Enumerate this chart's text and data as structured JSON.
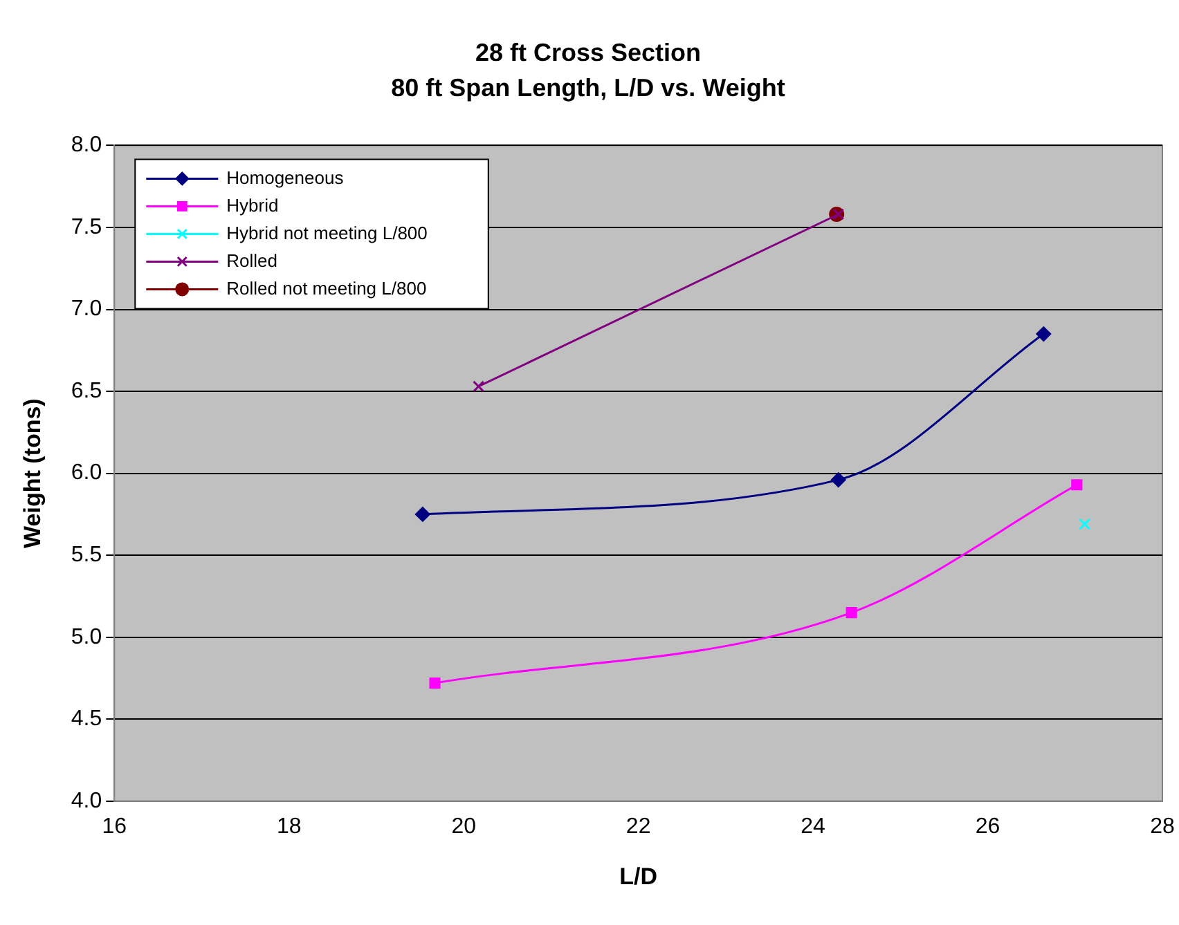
{
  "chart_data": {
    "type": "line",
    "title": "28 ft Cross Section",
    "subtitle": "80 ft Span Length, L/D vs. Weight",
    "xlabel": "L/D",
    "ylabel": "Weight (tons)",
    "xlim": [
      16,
      28
    ],
    "xticks": [
      16,
      18,
      20,
      22,
      24,
      26,
      28
    ],
    "ylim": [
      4,
      8
    ],
    "yticks": [
      {
        "value": 4,
        "label": "4.0"
      },
      {
        "value": 4.5,
        "label": "4.5"
      },
      {
        "value": 5,
        "label": "5.0"
      },
      {
        "value": 5.5,
        "label": "5.5"
      },
      {
        "value": 6,
        "label": "6.0"
      },
      {
        "value": 6.5,
        "label": "6.5"
      },
      {
        "value": 7,
        "label": "7.0"
      },
      {
        "value": 7.5,
        "label": "7.5"
      },
      {
        "value": 8,
        "label": "8.0"
      }
    ],
    "grid": "y",
    "legend": "top left",
    "series": [
      {
        "name": "Homogeneous",
        "color": "#000080",
        "marker": "diamond",
        "x": [
          19.53,
          24.29,
          26.64
        ],
        "values": [
          5.75,
          5.96,
          6.85
        ]
      },
      {
        "name": "Hybrid",
        "color": "#ff00ff",
        "marker": "square",
        "x": [
          19.67,
          24.44,
          27.02
        ],
        "values": [
          4.72,
          5.15,
          5.93
        ]
      },
      {
        "name": "Hybrid not meeting L/800",
        "color": "#00ffff",
        "marker": "cross",
        "x": [
          27.11
        ],
        "values": [
          5.69
        ]
      },
      {
        "name": "Rolled",
        "color": "#800080",
        "marker": "cross",
        "x": [
          20.17,
          24.29
        ],
        "values": [
          6.53,
          7.58
        ]
      },
      {
        "name": "Rolled not meeting L/800",
        "color": "#800000",
        "marker": "circle",
        "x": [
          24.27
        ],
        "values": [
          7.58
        ]
      }
    ]
  }
}
